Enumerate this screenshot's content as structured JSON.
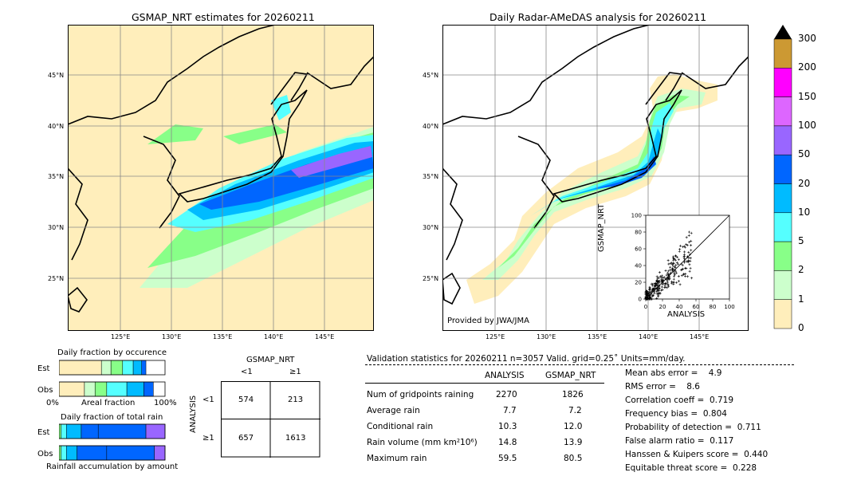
{
  "map_left": {
    "title": "GSMAP_NRT estimates for 20260211",
    "lat_labels": [
      "45°N",
      "40°N",
      "35°N",
      "30°N",
      "25°N"
    ],
    "lon_labels": [
      "125°E",
      "130°E",
      "135°E",
      "140°E",
      "145°E"
    ]
  },
  "map_right": {
    "title": "Daily Radar-AMeDAS analysis for 20260211",
    "credit": "Provided by JWA/JMA",
    "lat_labels": [
      "45°N",
      "40°N",
      "35°N",
      "30°N",
      "25°N"
    ],
    "lon_labels": [
      "125°E",
      "130°E",
      "135°E",
      "140°E",
      "145°E"
    ]
  },
  "colorbar": {
    "labels": [
      "300",
      "200",
      "150",
      "100",
      "50",
      "20",
      "10",
      "5",
      "2",
      "1",
      "0"
    ],
    "colors": [
      "#cc9933",
      "#ff00ff",
      "#dd66ff",
      "#9966ff",
      "#0066ff",
      "#00bbff",
      "#55ffff",
      "#88ff88",
      "#ccffcc",
      "#ffeebb"
    ]
  },
  "inset": {
    "xlabel": "ANALYSIS",
    "ylabel": "GSMAP_NRT",
    "x_ticks": [
      "0",
      "20",
      "40",
      "60",
      "80",
      "100"
    ],
    "y_ticks": [
      "0",
      "20",
      "40",
      "60",
      "80",
      "100"
    ]
  },
  "occurrence": {
    "title": "Daily fraction by occurence",
    "est_label": "Est",
    "obs_label": "Obs",
    "axis_left": "0%",
    "axis_mid": "Areal fraction",
    "axis_right": "100%"
  },
  "total_rain": {
    "title": "Daily fraction of total rain",
    "est_label": "Est",
    "obs_label": "Obs",
    "footer": "Rainfall accumulation by amount"
  },
  "contingency": {
    "col_title": "GSMAP_NRT",
    "col_lt": "<1",
    "col_ge": "≥1",
    "row_title": "ANALYSIS",
    "row_lt": "<1",
    "row_ge": "≥1",
    "c11": "574",
    "c12": "213",
    "c21": "657",
    "c22": "1613"
  },
  "validation": {
    "header": "Validation statistics for 20260211  n=3057 Valid. grid=0.25˚ Units=mm/day.",
    "col_analysis": "ANALYSIS",
    "col_gsmap": "GSMAP_NRT",
    "rows": [
      {
        "label": "Num of gridpoints raining",
        "analysis": "2270",
        "gsmap": "1826"
      },
      {
        "label": "Average rain",
        "analysis": "7.7",
        "gsmap": "7.2"
      },
      {
        "label": "Conditional rain",
        "analysis": "10.3",
        "gsmap": "12.0"
      },
      {
        "label": "Rain volume (mm km²10⁶)",
        "analysis": "14.8",
        "gsmap": "13.9"
      },
      {
        "label": "Maximum rain",
        "analysis": "59.5",
        "gsmap": "80.5"
      }
    ],
    "scores": [
      "Mean abs error =    4.9",
      "RMS error =    8.6",
      "Correlation coeff =  0.719",
      "Frequency bias =  0.804",
      "Probability of detection =  0.711",
      "False alarm ratio =  0.117",
      "Hanssen & Kuipers score =  0.440",
      "Equitable threat score =  0.228"
    ]
  },
  "chart_data": [
    {
      "type": "bar",
      "title": "Daily fraction by occurence",
      "xlabel": "Areal fraction",
      "series": [
        {
          "name": "Est",
          "values": [
            0.4,
            0.09,
            0.11,
            0.1,
            0.08,
            0.04
          ]
        },
        {
          "name": "Obs",
          "values": [
            0.24,
            0.1,
            0.11,
            0.19,
            0.16,
            0.09
          ]
        }
      ]
    },
    {
      "type": "bar",
      "title": "Daily fraction of total rain",
      "xlabel": "Rainfall accumulation by amount",
      "series": [
        {
          "name": "Est",
          "values": [
            0.02,
            0.05,
            0.14,
            0.16,
            0.45,
            0.18
          ]
        },
        {
          "name": "Obs",
          "values": [
            0.02,
            0.05,
            0.1,
            0.28,
            0.45,
            0.1
          ]
        }
      ]
    },
    {
      "type": "scatter",
      "xlabel": "ANALYSIS",
      "ylabel": "GSMAP_NRT",
      "xlim": [
        0,
        100
      ],
      "ylim": [
        0,
        100
      ]
    }
  ]
}
